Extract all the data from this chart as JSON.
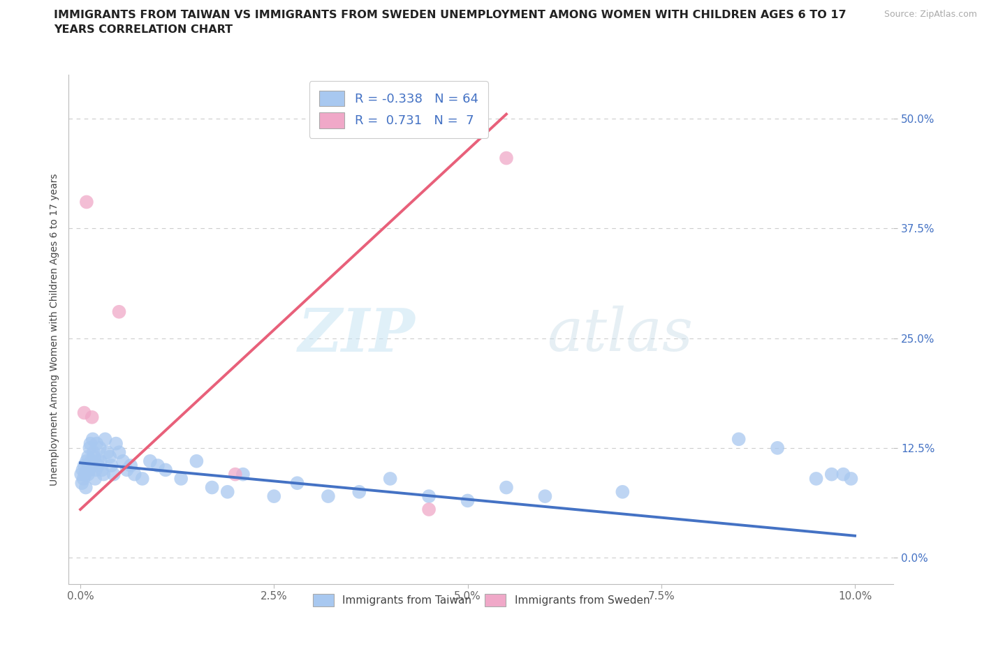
{
  "title_line1": "IMMIGRANTS FROM TAIWAN VS IMMIGRANTS FROM SWEDEN UNEMPLOYMENT AMONG WOMEN WITH CHILDREN AGES 6 TO 17",
  "title_line2": "YEARS CORRELATION CHART",
  "source": "Source: ZipAtlas.com",
  "taiwan_color": "#a8c8f0",
  "sweden_color": "#f0a8c8",
  "trendline_taiwan_color": "#4472c4",
  "trendline_sweden_color": "#e8607a",
  "taiwan_R": -0.338,
  "taiwan_N": 64,
  "sweden_R": 0.731,
  "sweden_N": 7,
  "taiwan_x": [
    0.01,
    0.02,
    0.03,
    0.04,
    0.05,
    0.06,
    0.07,
    0.08,
    0.09,
    0.1,
    0.1,
    0.11,
    0.12,
    0.13,
    0.14,
    0.15,
    0.16,
    0.17,
    0.18,
    0.19,
    0.2,
    0.21,
    0.22,
    0.23,
    0.25,
    0.26,
    0.28,
    0.3,
    0.32,
    0.35,
    0.38,
    0.4,
    0.43,
    0.46,
    0.5,
    0.55,
    0.6,
    0.65,
    0.7,
    0.8,
    0.9,
    1.0,
    1.1,
    1.3,
    1.5,
    1.7,
    1.9,
    2.1,
    2.5,
    2.8,
    3.2,
    3.6,
    4.0,
    4.5,
    5.0,
    5.5,
    6.0,
    7.0,
    8.5,
    9.0,
    9.5,
    9.7,
    9.85,
    9.95
  ],
  "taiwan_y": [
    9.5,
    8.5,
    10.0,
    9.0,
    10.5,
    9.5,
    8.0,
    11.0,
    10.0,
    9.5,
    11.5,
    10.0,
    12.5,
    13.0,
    11.0,
    10.5,
    13.5,
    12.0,
    11.5,
    9.0,
    10.0,
    13.0,
    11.0,
    10.5,
    12.5,
    11.0,
    10.0,
    9.5,
    13.5,
    12.0,
    11.5,
    10.5,
    9.5,
    13.0,
    12.0,
    11.0,
    10.0,
    10.5,
    9.5,
    9.0,
    11.0,
    10.5,
    10.0,
    9.0,
    11.0,
    8.0,
    7.5,
    9.5,
    7.0,
    8.5,
    7.0,
    7.5,
    9.0,
    7.0,
    6.5,
    8.0,
    7.0,
    7.5,
    13.5,
    12.5,
    9.0,
    9.5,
    9.5,
    9.0
  ],
  "sweden_x": [
    0.05,
    0.08,
    0.15,
    0.5,
    2.0,
    4.5,
    5.5
  ],
  "sweden_y": [
    16.5,
    40.5,
    16.0,
    28.0,
    9.5,
    5.5,
    45.5
  ],
  "taiwan_trend_x0": 0.0,
  "taiwan_trend_x1": 10.0,
  "taiwan_trend_y0": 10.8,
  "taiwan_trend_y1": 2.5,
  "sweden_trend_x0": 0.0,
  "sweden_trend_x1": 5.5,
  "sweden_trend_y0": 5.5,
  "sweden_trend_y1": 50.5,
  "watermark_zip": "ZIP",
  "watermark_atlas": "atlas",
  "xlim_min": -0.15,
  "xlim_max": 10.5,
  "ylim_min": -3.0,
  "ylim_max": 55.0,
  "xlabel_vals": [
    0.0,
    2.5,
    5.0,
    7.5,
    10.0
  ],
  "ylabel_vals": [
    0.0,
    12.5,
    25.0,
    37.5,
    50.0
  ],
  "legend_R_taiwan": "R = -0.338",
  "legend_N_taiwan": "N = 64",
  "legend_R_sweden": "R =  0.731",
  "legend_N_sweden": "N =  7",
  "ylabel": "Unemployment Among Women with Children Ages 6 to 17 years",
  "legend_bottom_taiwan": "Immigrants from Taiwan",
  "legend_bottom_sweden": "Immigrants from Sweden"
}
